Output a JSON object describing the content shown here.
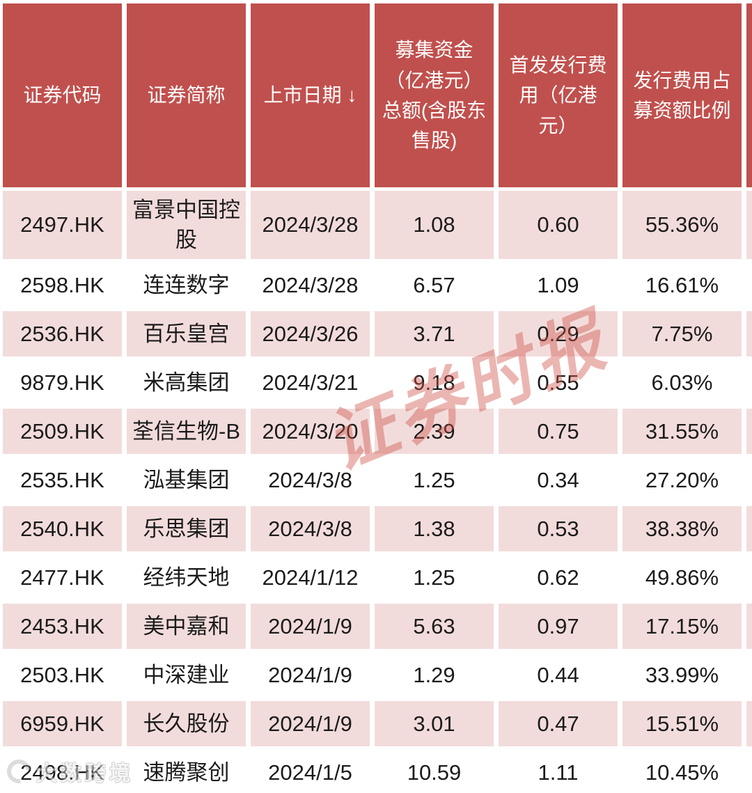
{
  "colors": {
    "header_red": "#C0504D",
    "row_pink": "#F2DCDB",
    "gap_white": "#FFFFFF",
    "body_text": "#1B1B1B",
    "header_text": "#FFFFFF",
    "watermark_red": "#D0544A"
  },
  "chart_data": {
    "type": "table",
    "sort": {
      "column": "上市日期",
      "direction": "desc",
      "indicator": "↓"
    },
    "columns": [
      "证券代码",
      "证券简称",
      "上市日期 ↓",
      "募集资金\n（亿港元）\n总额(含股东\n售股)",
      "首发发行费\n用（亿港\n元）",
      "发行费用占\n募资额比例"
    ],
    "rows": [
      [
        "2497.HK",
        "富景中国控股",
        "2024/3/28",
        "1.08",
        "0.60",
        "55.36%"
      ],
      [
        "2598.HK",
        "连连数字",
        "2024/3/28",
        "6.57",
        "1.09",
        "16.61%"
      ],
      [
        "2536.HK",
        "百乐皇宫",
        "2024/3/26",
        "3.71",
        "0.29",
        "7.75%"
      ],
      [
        "9879.HK",
        "米高集团",
        "2024/3/21",
        "9.18",
        "0.55",
        "6.03%"
      ],
      [
        "2509.HK",
        "荃信生物-B",
        "2024/3/20",
        "2.39",
        "0.75",
        "31.55%"
      ],
      [
        "2535.HK",
        "泓基集团",
        "2024/3/8",
        "1.25",
        "0.34",
        "27.20%"
      ],
      [
        "2540.HK",
        "乐思集团",
        "2024/3/8",
        "1.38",
        "0.53",
        "38.38%"
      ],
      [
        "2477.HK",
        "经纬天地",
        "2024/1/12",
        "1.25",
        "0.62",
        "49.86%"
      ],
      [
        "2453.HK",
        "美中嘉和",
        "2024/1/9",
        "5.63",
        "0.97",
        "17.15%"
      ],
      [
        "2503.HK",
        "中深建业",
        "2024/1/9",
        "1.29",
        "0.44",
        "33.99%"
      ],
      [
        "6959.HK",
        "长久股份",
        "2024/1/9",
        "3.01",
        "0.47",
        "15.51%"
      ],
      [
        "2498.HK",
        "速腾聚创",
        "2024/1/5",
        "10.59",
        "1.11",
        "10.45%"
      ]
    ]
  },
  "watermarks": {
    "center_text": "证券时报",
    "bottom_text": "大数跨境"
  }
}
